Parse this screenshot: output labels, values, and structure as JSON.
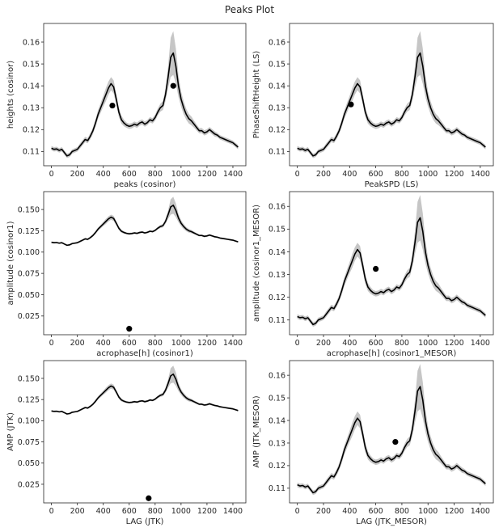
{
  "figure": {
    "title": "Peaks Plot"
  },
  "chart_data": [
    {
      "type": "line",
      "xlabel": "peaks (cosinor)",
      "ylabel": "heights (cosinor)",
      "xlim": [
        -60,
        1500
      ],
      "ylim": [
        0.1035,
        0.1685
      ],
      "xticks": [
        0,
        200,
        400,
        600,
        800,
        1000,
        1200,
        1400
      ],
      "yticks": [
        0.11,
        0.12,
        0.13,
        0.14,
        0.15,
        0.16
      ],
      "ytick_labels": [
        "0.11",
        "0.12",
        "0.13",
        "0.14",
        "0.15",
        "0.16"
      ],
      "points": [
        [
          470,
          0.131
        ],
        [
          940,
          0.14
        ]
      ]
    },
    {
      "type": "line",
      "xlabel": "PeakSPD (LS)",
      "ylabel": "PhaseShiftHeight (LS)",
      "xlim": [
        -60,
        1500
      ],
      "ylim": [
        0.1035,
        0.1685
      ],
      "xticks": [
        0,
        200,
        400,
        600,
        800,
        1000,
        1200,
        1400
      ],
      "yticks": [
        0.11,
        0.12,
        0.13,
        0.14,
        0.15,
        0.16
      ],
      "ytick_labels": [
        "0.11",
        "0.12",
        "0.13",
        "0.14",
        "0.15",
        "0.16"
      ],
      "points": [
        [
          410,
          0.1315
        ]
      ]
    },
    {
      "type": "line",
      "xlabel": "acrophase[h] (cosinor1)",
      "ylabel": "amplitude (cosinor1)",
      "xlim": [
        -60,
        1500
      ],
      "ylim": [
        0.003,
        0.171
      ],
      "xticks": [
        0,
        200,
        400,
        600,
        800,
        1000,
        1200,
        1400
      ],
      "yticks": [
        0.025,
        0.05,
        0.075,
        0.1,
        0.125,
        0.15
      ],
      "ytick_labels": [
        "0.025",
        "0.050",
        "0.075",
        "0.100",
        "0.125",
        "0.150"
      ],
      "points": [
        [
          600,
          0.01
        ]
      ]
    },
    {
      "type": "line",
      "xlabel": "acrophase[h] (cosinor1_MESOR)",
      "ylabel": "amplitude (cosinor1_MESOR)",
      "xlim": [
        -60,
        1500
      ],
      "ylim": [
        0.1035,
        0.1665
      ],
      "xticks": [
        0,
        200,
        400,
        600,
        800,
        1000,
        1200,
        1400
      ],
      "yticks": [
        0.11,
        0.12,
        0.13,
        0.14,
        0.15,
        0.16
      ],
      "ytick_labels": [
        "0.11",
        "0.12",
        "0.13",
        "0.14",
        "0.15",
        "0.16"
      ],
      "points": [
        [
          600,
          0.1325
        ]
      ]
    },
    {
      "type": "line",
      "xlabel": "LAG (JTK)",
      "ylabel": "AMP (JTK)",
      "xlim": [
        -60,
        1500
      ],
      "ylim": [
        0.003,
        0.171
      ],
      "xticks": [
        0,
        200,
        400,
        600,
        800,
        1000,
        1200,
        1400
      ],
      "yticks": [
        0.025,
        0.05,
        0.075,
        0.1,
        0.125,
        0.15
      ],
      "ytick_labels": [
        "0.025",
        "0.050",
        "0.075",
        "0.100",
        "0.125",
        "0.150"
      ],
      "points": [
        [
          750,
          0.0085
        ]
      ]
    },
    {
      "type": "line",
      "xlabel": "LAG (JTK_MESOR)",
      "ylabel": "AMP (JTK_MESOR)",
      "xlim": [
        -60,
        1500
      ],
      "ylim": [
        0.1035,
        0.1665
      ],
      "xticks": [
        0,
        200,
        400,
        600,
        800,
        1000,
        1200,
        1400
      ],
      "yticks": [
        0.11,
        0.12,
        0.13,
        0.14,
        0.15,
        0.16
      ],
      "ytick_labels": [
        "0.11",
        "0.12",
        "0.13",
        "0.14",
        "0.15",
        "0.16"
      ],
      "points": [
        [
          750,
          0.1305
        ]
      ]
    }
  ],
  "profile": {
    "x": [
      0,
      20,
      40,
      60,
      80,
      100,
      120,
      140,
      160,
      180,
      200,
      220,
      240,
      260,
      280,
      300,
      320,
      340,
      360,
      380,
      400,
      420,
      440,
      460,
      480,
      500,
      520,
      540,
      560,
      580,
      600,
      620,
      640,
      660,
      680,
      700,
      720,
      740,
      760,
      780,
      800,
      820,
      840,
      860,
      880,
      900,
      920,
      940,
      960,
      980,
      1000,
      1020,
      1040,
      1060,
      1080,
      1100,
      1120,
      1140,
      1160,
      1180,
      1200,
      1220,
      1240,
      1260,
      1280,
      1300,
      1320,
      1340,
      1360,
      1380,
      1400,
      1420,
      1440
    ],
    "mean": [
      0.1115,
      0.111,
      0.1112,
      0.1105,
      0.111,
      0.1095,
      0.108,
      0.1085,
      0.11,
      0.1105,
      0.111,
      0.1125,
      0.114,
      0.1155,
      0.115,
      0.117,
      0.1195,
      0.123,
      0.127,
      0.13,
      0.133,
      0.136,
      0.139,
      0.141,
      0.1395,
      0.134,
      0.128,
      0.1245,
      0.123,
      0.122,
      0.1215,
      0.1218,
      0.1225,
      0.122,
      0.123,
      0.1235,
      0.1225,
      0.1232,
      0.1245,
      0.124,
      0.1255,
      0.128,
      0.13,
      0.131,
      0.136,
      0.144,
      0.153,
      0.155,
      0.149,
      0.14,
      0.134,
      0.13,
      0.127,
      0.125,
      0.124,
      0.1225,
      0.121,
      0.1195,
      0.1195,
      0.1185,
      0.119,
      0.12,
      0.119,
      0.118,
      0.1175,
      0.1165,
      0.116,
      0.1155,
      0.115,
      0.1145,
      0.114,
      0.113,
      0.112
    ],
    "band_halfwidth": [
      0.001,
      0.001,
      0.001,
      0.001,
      0.001,
      0.001,
      0.001,
      0.001,
      0.001,
      0.001,
      0.001,
      0.0012,
      0.0012,
      0.0012,
      0.0012,
      0.0014,
      0.0015,
      0.0018,
      0.002,
      0.0022,
      0.0025,
      0.003,
      0.003,
      0.003,
      0.003,
      0.0025,
      0.0022,
      0.0018,
      0.0015,
      0.0012,
      0.0012,
      0.0012,
      0.0012,
      0.0012,
      0.0012,
      0.0012,
      0.0012,
      0.0012,
      0.0012,
      0.0012,
      0.0014,
      0.0016,
      0.0018,
      0.002,
      0.003,
      0.005,
      0.009,
      0.01,
      0.008,
      0.005,
      0.0035,
      0.003,
      0.0025,
      0.0022,
      0.002,
      0.0016,
      0.0014,
      0.0012,
      0.0012,
      0.0012,
      0.0012,
      0.0012,
      0.0012,
      0.0012,
      0.001,
      0.001,
      0.001,
      0.001,
      0.001,
      0.001,
      0.001,
      0.001,
      0.001
    ]
  },
  "colors": {
    "line": "#000000",
    "band": "#a0a0a0",
    "marker": "#000000",
    "frame": "#262626"
  }
}
